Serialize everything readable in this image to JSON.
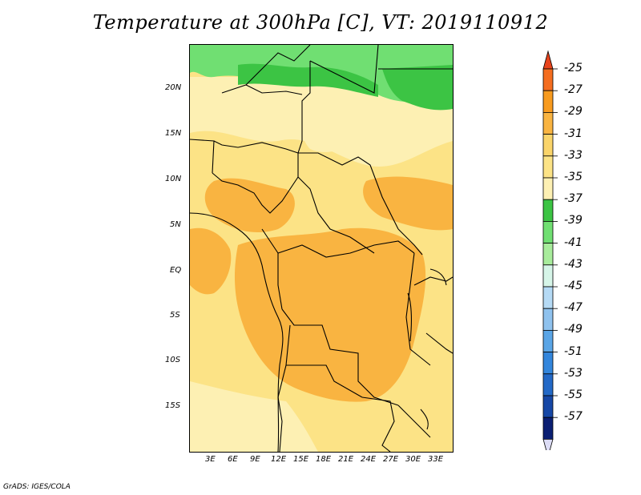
{
  "title": "Temperature at 300hPa [C], VT: 2019110912",
  "credit": "GrADS: IGES/COLA",
  "axes": {
    "lat_ticks": [
      "20N",
      "15N",
      "10N",
      "5N",
      "EQ",
      "5S",
      "10S",
      "15S"
    ],
    "lon_ticks": [
      "3E",
      "6E",
      "9E",
      "12E",
      "15E",
      "18E",
      "21E",
      "24E",
      "27E",
      "30E",
      "33E"
    ]
  },
  "legend": {
    "levels": [
      {
        "label": "-25",
        "color": "#f46d1f"
      },
      {
        "label": "-27",
        "color": "#f89b1f"
      },
      {
        "label": "-29",
        "color": "#f9b441"
      },
      {
        "label": "-31",
        "color": "#fad46a"
      },
      {
        "label": "-33",
        "color": "#fce386"
      },
      {
        "label": "-35",
        "color": "#fdf0b3"
      },
      {
        "label": "-37",
        "color": "#3cc444"
      },
      {
        "label": "-39",
        "color": "#70df72"
      },
      {
        "label": "-41",
        "color": "#a8ec9c"
      },
      {
        "label": "-43",
        "color": "#d6f5e8"
      },
      {
        "label": "-45",
        "color": "#b5daf5"
      },
      {
        "label": "-47",
        "color": "#8fc2ee"
      },
      {
        "label": "-49",
        "color": "#5aa5e6"
      },
      {
        "label": "-51",
        "color": "#3386dc"
      },
      {
        "label": "-53",
        "color": "#2369c7"
      },
      {
        "label": "-55",
        "color": "#1647a6"
      },
      {
        "label": "-57",
        "color": "#0b1f73"
      }
    ],
    "top_arrow_color": "#e8431b",
    "bottom_arrow_color": "#dcdcf5"
  }
}
